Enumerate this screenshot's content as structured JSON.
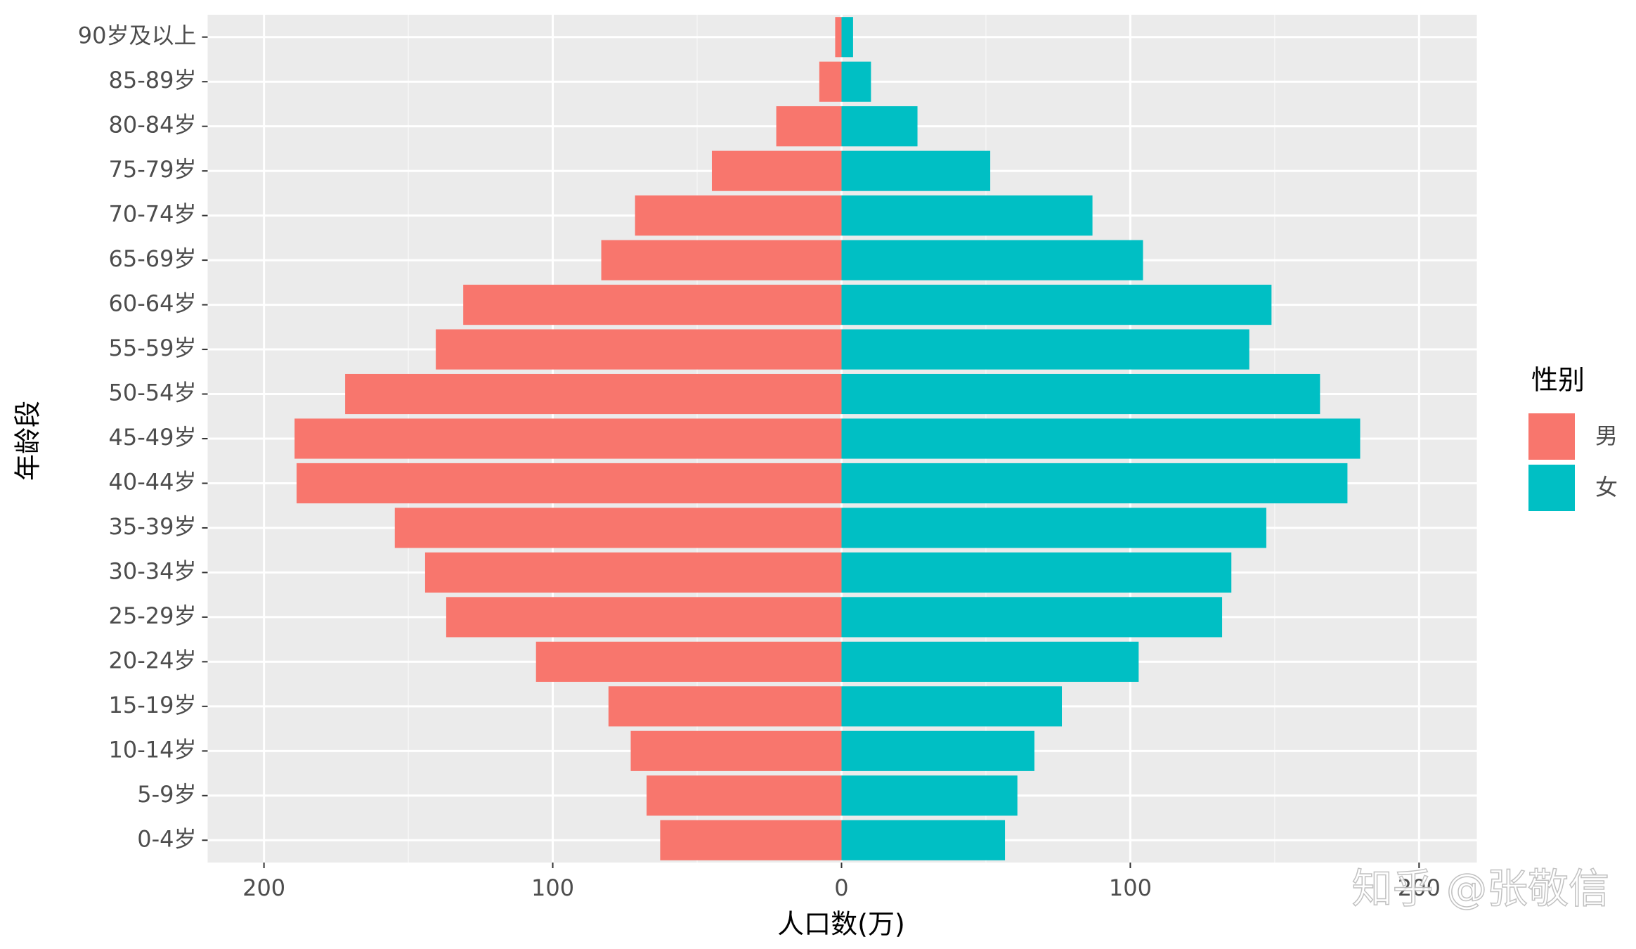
{
  "chart_data": {
    "type": "bar",
    "orientation": "horizontal",
    "xlabel": "人口数(万)",
    "ylabel": "年龄段",
    "legend_title": "性别",
    "legend_position": "right",
    "categories": [
      "0-4岁",
      "5-9岁",
      "10-14岁",
      "15-19岁",
      "20-24岁",
      "25-29岁",
      "30-34岁",
      "35-39岁",
      "40-44岁",
      "45-49岁",
      "50-54岁",
      "55-59岁",
      "60-64岁",
      "65-69岁",
      "70-74岁",
      "75-79岁",
      "80-84岁",
      "85-89岁",
      "90岁及以上"
    ],
    "series": [
      {
        "name": "男",
        "color": "#f8766d",
        "values": [
          -62.8,
          -67.5,
          -73,
          -80.7,
          -105.8,
          -136.9,
          -144.2,
          -154.7,
          -188.7,
          -189.4,
          -171.9,
          -140.5,
          -131,
          -83.2,
          -71.5,
          -44.9,
          -22.6,
          -7.7,
          -2.2
        ]
      },
      {
        "name": "女",
        "color": "#00bfc4",
        "values": [
          56.6,
          60.9,
          66.8,
          76.3,
          102.9,
          131.8,
          135,
          147.1,
          175.2,
          179.6,
          165.7,
          141.2,
          148.9,
          104.4,
          86.9,
          51.5,
          26.3,
          10.2,
          4
        ]
      }
    ],
    "xlim": [
      -219.5,
      220
    ],
    "xticks": [
      {
        "value": -200,
        "label": "200"
      },
      {
        "value": -100,
        "label": "100"
      },
      0,
      100,
      200
    ],
    "grid": true,
    "watermark": "知乎 @张敬信"
  }
}
